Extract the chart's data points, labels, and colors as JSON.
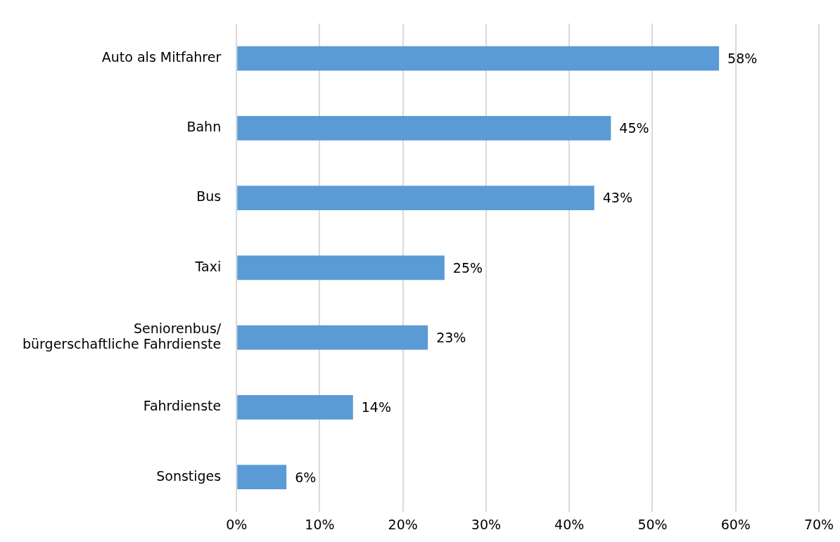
{
  "chart_data": {
    "type": "bar",
    "orientation": "horizontal",
    "categories": [
      "Auto als Mitfahrer",
      "Bahn",
      "Bus",
      "Taxi",
      "Seniorenbus/\nbürgerschaftliche Fahrdienste",
      "Fahrdienste",
      "Sonstiges"
    ],
    "values": [
      58,
      45,
      43,
      25,
      23,
      14,
      6
    ],
    "value_labels": [
      "58%",
      "45%",
      "43%",
      "25%",
      "23%",
      "14%",
      "6%"
    ],
    "color": "#5b9bd5",
    "xlim": [
      0,
      70
    ],
    "xticks": [
      {
        "value": 0,
        "label": "0%"
      },
      {
        "value": 10,
        "label": "10%"
      },
      {
        "value": 20,
        "label": "20%"
      },
      {
        "value": 30,
        "label": "30%"
      },
      {
        "value": 40,
        "label": "40%"
      },
      {
        "value": 50,
        "label": "50%"
      },
      {
        "value": 60,
        "label": "60%"
      },
      {
        "value": 70,
        "label": "70%"
      }
    ],
    "grid": "x",
    "legend": false
  }
}
